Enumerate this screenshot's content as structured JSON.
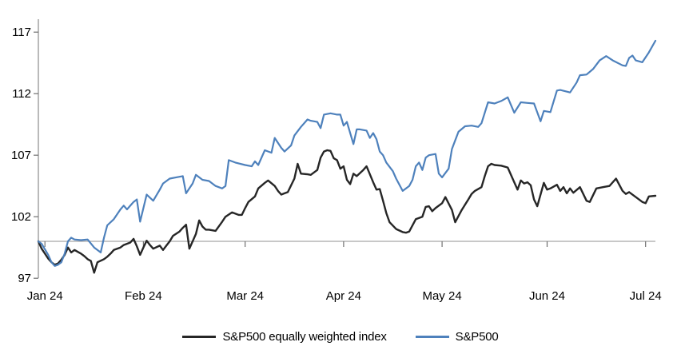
{
  "chart_data": {
    "type": "line",
    "title": "",
    "legend_position": "bottom-center",
    "grid": "off",
    "background": "#ffffff",
    "axis_color": "#8c8c8c",
    "tick_color": "#707070",
    "text_color": "#000000",
    "baseline": {
      "value": 100,
      "color": "#a6a6a6"
    },
    "y_axis": {
      "min": 97,
      "max": 118,
      "ticks": [
        "97",
        "102",
        "107",
        "112",
        "117"
      ],
      "tick_values": [
        97,
        102,
        107,
        112,
        117
      ]
    },
    "x_axis": {
      "unit": "days from start (late Dec 2023 = 0)",
      "total_days": 188,
      "ticks": [
        {
          "label": "Jan 24",
          "day": 2
        },
        {
          "label": "Feb 24",
          "day": 32
        },
        {
          "label": "Mar 24",
          "day": 63
        },
        {
          "label": "Apr 24",
          "day": 93
        },
        {
          "label": "May 24",
          "day": 123
        },
        {
          "label": "Jun 24",
          "day": 155
        },
        {
          "label": "Jul 24",
          "day": 185
        }
      ]
    },
    "series": [
      {
        "name": "S&P500 equally weighted index",
        "color": "#262626",
        "stroke_width": 2.4,
        "points": [
          [
            0,
            100
          ],
          [
            1,
            99.4
          ],
          [
            2,
            99.0
          ],
          [
            3,
            98.6
          ],
          [
            4,
            98.3
          ],
          [
            5,
            98.1
          ],
          [
            6,
            98.2
          ],
          [
            7,
            98.5
          ],
          [
            8,
            98.9
          ],
          [
            9,
            99.5
          ],
          [
            10,
            99.1
          ],
          [
            11,
            99.3
          ],
          [
            13,
            99.0
          ],
          [
            14,
            98.8
          ],
          [
            15,
            98.55
          ],
          [
            16,
            98.4
          ],
          [
            17,
            97.45
          ],
          [
            18,
            98.3
          ],
          [
            20,
            98.55
          ],
          [
            21,
            98.75
          ],
          [
            22,
            99.0
          ],
          [
            23,
            99.3
          ],
          [
            25,
            99.5
          ],
          [
            26,
            99.7
          ],
          [
            28,
            99.9
          ],
          [
            29,
            100.2
          ],
          [
            30,
            99.6
          ],
          [
            31,
            98.9
          ],
          [
            32,
            99.5
          ],
          [
            33,
            100.05
          ],
          [
            34,
            99.7
          ],
          [
            35,
            99.4
          ],
          [
            37,
            99.65
          ],
          [
            38,
            99.3
          ],
          [
            39,
            99.65
          ],
          [
            40,
            100.0
          ],
          [
            41,
            100.45
          ],
          [
            43,
            100.8
          ],
          [
            44,
            101.1
          ],
          [
            45,
            101.35
          ],
          [
            46,
            99.4
          ],
          [
            48,
            100.6
          ],
          [
            49,
            101.7
          ],
          [
            50,
            101.2
          ],
          [
            51,
            100.95
          ],
          [
            52,
            100.95
          ],
          [
            54,
            100.85
          ],
          [
            56,
            101.6
          ],
          [
            57,
            102.0
          ],
          [
            59,
            102.35
          ],
          [
            61,
            102.15
          ],
          [
            62,
            102.15
          ],
          [
            63,
            102.7
          ],
          [
            64,
            103.2
          ],
          [
            66,
            103.65
          ],
          [
            67,
            104.3
          ],
          [
            69,
            104.75
          ],
          [
            70,
            104.95
          ],
          [
            72,
            104.5
          ],
          [
            73,
            104.1
          ],
          [
            74,
            103.8
          ],
          [
            75,
            103.9
          ],
          [
            76,
            104.0
          ],
          [
            78,
            105.1
          ],
          [
            79,
            106.3
          ],
          [
            80,
            105.5
          ],
          [
            82,
            105.45
          ],
          [
            83,
            105.4
          ],
          [
            85,
            105.8
          ],
          [
            86,
            106.8
          ],
          [
            87,
            107.3
          ],
          [
            88,
            107.4
          ],
          [
            89,
            107.35
          ],
          [
            90,
            106.75
          ],
          [
            91,
            106.6
          ],
          [
            92,
            105.9
          ],
          [
            93,
            106.1
          ],
          [
            94,
            105.0
          ],
          [
            95,
            104.65
          ],
          [
            96,
            105.5
          ],
          [
            97,
            105.3
          ],
          [
            99,
            105.8
          ],
          [
            100,
            106.1
          ],
          [
            102,
            104.8
          ],
          [
            103,
            104.2
          ],
          [
            104,
            104.25
          ],
          [
            105,
            103.3
          ],
          [
            106,
            102.3
          ],
          [
            107,
            101.55
          ],
          [
            109,
            101.0
          ],
          [
            111,
            100.75
          ],
          [
            112,
            100.7
          ],
          [
            113,
            100.8
          ],
          [
            115,
            101.8
          ],
          [
            117,
            102.0
          ],
          [
            118,
            102.8
          ],
          [
            119,
            102.85
          ],
          [
            120,
            102.45
          ],
          [
            121,
            102.7
          ],
          [
            123,
            103.1
          ],
          [
            124,
            103.6
          ],
          [
            126,
            102.55
          ],
          [
            127,
            101.55
          ],
          [
            129,
            102.55
          ],
          [
            131,
            103.4
          ],
          [
            132,
            103.85
          ],
          [
            133,
            104.1
          ],
          [
            135,
            104.4
          ],
          [
            136,
            105.3
          ],
          [
            137,
            106.1
          ],
          [
            138,
            106.3
          ],
          [
            139,
            106.2
          ],
          [
            141,
            106.15
          ],
          [
            143,
            106.0
          ],
          [
            145,
            104.8
          ],
          [
            146,
            104.2
          ],
          [
            147,
            104.95
          ],
          [
            148,
            104.7
          ],
          [
            149,
            104.8
          ],
          [
            150,
            104.55
          ],
          [
            151,
            103.4
          ],
          [
            152,
            102.85
          ],
          [
            154,
            104.75
          ],
          [
            155,
            104.2
          ],
          [
            156,
            104.3
          ],
          [
            158,
            104.6
          ],
          [
            159,
            104.1
          ],
          [
            160,
            104.4
          ],
          [
            161,
            103.9
          ],
          [
            162,
            104.3
          ],
          [
            163,
            103.95
          ],
          [
            165,
            104.4
          ],
          [
            167,
            103.3
          ],
          [
            168,
            103.2
          ],
          [
            170,
            104.3
          ],
          [
            172,
            104.4
          ],
          [
            174,
            104.5
          ],
          [
            176,
            105.1
          ],
          [
            178,
            104.1
          ],
          [
            179,
            103.85
          ],
          [
            180,
            104.0
          ],
          [
            182,
            103.6
          ],
          [
            184,
            103.2
          ],
          [
            185,
            103.1
          ],
          [
            186,
            103.65
          ],
          [
            188,
            103.7
          ]
        ]
      },
      {
        "name": "S&P500",
        "color": "#4e81bc",
        "stroke_width": 2.2,
        "points": [
          [
            0,
            100
          ],
          [
            1,
            99.8
          ],
          [
            3,
            98.9
          ],
          [
            4,
            98.3
          ],
          [
            5,
            98.0
          ],
          [
            6,
            98.1
          ],
          [
            7,
            98.3
          ],
          [
            8,
            99.0
          ],
          [
            9,
            100.0
          ],
          [
            10,
            100.3
          ],
          [
            11,
            100.15
          ],
          [
            13,
            100.1
          ],
          [
            15,
            100.15
          ],
          [
            17,
            99.5
          ],
          [
            19,
            99.1
          ],
          [
            20,
            100.3
          ],
          [
            21,
            101.3
          ],
          [
            23,
            101.8
          ],
          [
            25,
            102.6
          ],
          [
            26,
            102.9
          ],
          [
            27,
            102.6
          ],
          [
            29,
            103.2
          ],
          [
            30,
            103.4
          ],
          [
            31,
            101.6
          ],
          [
            33,
            103.8
          ],
          [
            35,
            103.3
          ],
          [
            37,
            104.2
          ],
          [
            38,
            104.7
          ],
          [
            40,
            105.1
          ],
          [
            42,
            105.2
          ],
          [
            44,
            105.3
          ],
          [
            45,
            103.9
          ],
          [
            47,
            104.7
          ],
          [
            48,
            105.4
          ],
          [
            50,
            105.0
          ],
          [
            52,
            104.9
          ],
          [
            54,
            104.5
          ],
          [
            56,
            104.3
          ],
          [
            57,
            104.5
          ],
          [
            58,
            106.6
          ],
          [
            60,
            106.4
          ],
          [
            63,
            106.2
          ],
          [
            65,
            106.1
          ],
          [
            66,
            106.5
          ],
          [
            67,
            106.2
          ],
          [
            69,
            107.4
          ],
          [
            71,
            107.2
          ],
          [
            72,
            108.4
          ],
          [
            74,
            107.6
          ],
          [
            75,
            107.3
          ],
          [
            77,
            107.8
          ],
          [
            78,
            108.6
          ],
          [
            80,
            109.3
          ],
          [
            82,
            109.9
          ],
          [
            83,
            109.8
          ],
          [
            85,
            109.7
          ],
          [
            86,
            109.2
          ],
          [
            87,
            110.3
          ],
          [
            89,
            110.4
          ],
          [
            91,
            110.3
          ],
          [
            92,
            110.3
          ],
          [
            93,
            109.4
          ],
          [
            94,
            109.7
          ],
          [
            96,
            107.9
          ],
          [
            97,
            109.1
          ],
          [
            98,
            109.1
          ],
          [
            100,
            109.0
          ],
          [
            101,
            108.4
          ],
          [
            102,
            108.8
          ],
          [
            103,
            108.3
          ],
          [
            104,
            107.3
          ],
          [
            105,
            107.0
          ],
          [
            106,
            106.4
          ],
          [
            108,
            105.7
          ],
          [
            109,
            105.1
          ],
          [
            111,
            104.1
          ],
          [
            113,
            104.5
          ],
          [
            114,
            105.0
          ],
          [
            115,
            106.1
          ],
          [
            116,
            106.4
          ],
          [
            117,
            105.8
          ],
          [
            118,
            106.8
          ],
          [
            119,
            107.0
          ],
          [
            121,
            107.1
          ],
          [
            122,
            105.5
          ],
          [
            123,
            105.2
          ],
          [
            125,
            105.9
          ],
          [
            126,
            107.5
          ],
          [
            127,
            108.2
          ],
          [
            128,
            108.9
          ],
          [
            130,
            109.35
          ],
          [
            132,
            109.4
          ],
          [
            134,
            109.3
          ],
          [
            135,
            109.6
          ],
          [
            137,
            111.3
          ],
          [
            139,
            111.2
          ],
          [
            141,
            111.4
          ],
          [
            143,
            111.7
          ],
          [
            145,
            110.45
          ],
          [
            147,
            111.3
          ],
          [
            149,
            111.25
          ],
          [
            151,
            111.2
          ],
          [
            153,
            109.75
          ],
          [
            154,
            110.6
          ],
          [
            156,
            110.5
          ],
          [
            158,
            112.25
          ],
          [
            159,
            112.3
          ],
          [
            162,
            112.1
          ],
          [
            164,
            112.9
          ],
          [
            165,
            113.5
          ],
          [
            167,
            113.55
          ],
          [
            169,
            114.0
          ],
          [
            171,
            114.7
          ],
          [
            173,
            115.05
          ],
          [
            175,
            114.7
          ],
          [
            178,
            114.3
          ],
          [
            179,
            114.25
          ],
          [
            180,
            114.9
          ],
          [
            181,
            115.1
          ],
          [
            182,
            114.7
          ],
          [
            184,
            114.55
          ],
          [
            186,
            115.35
          ],
          [
            188,
            116.3
          ]
        ]
      }
    ]
  }
}
